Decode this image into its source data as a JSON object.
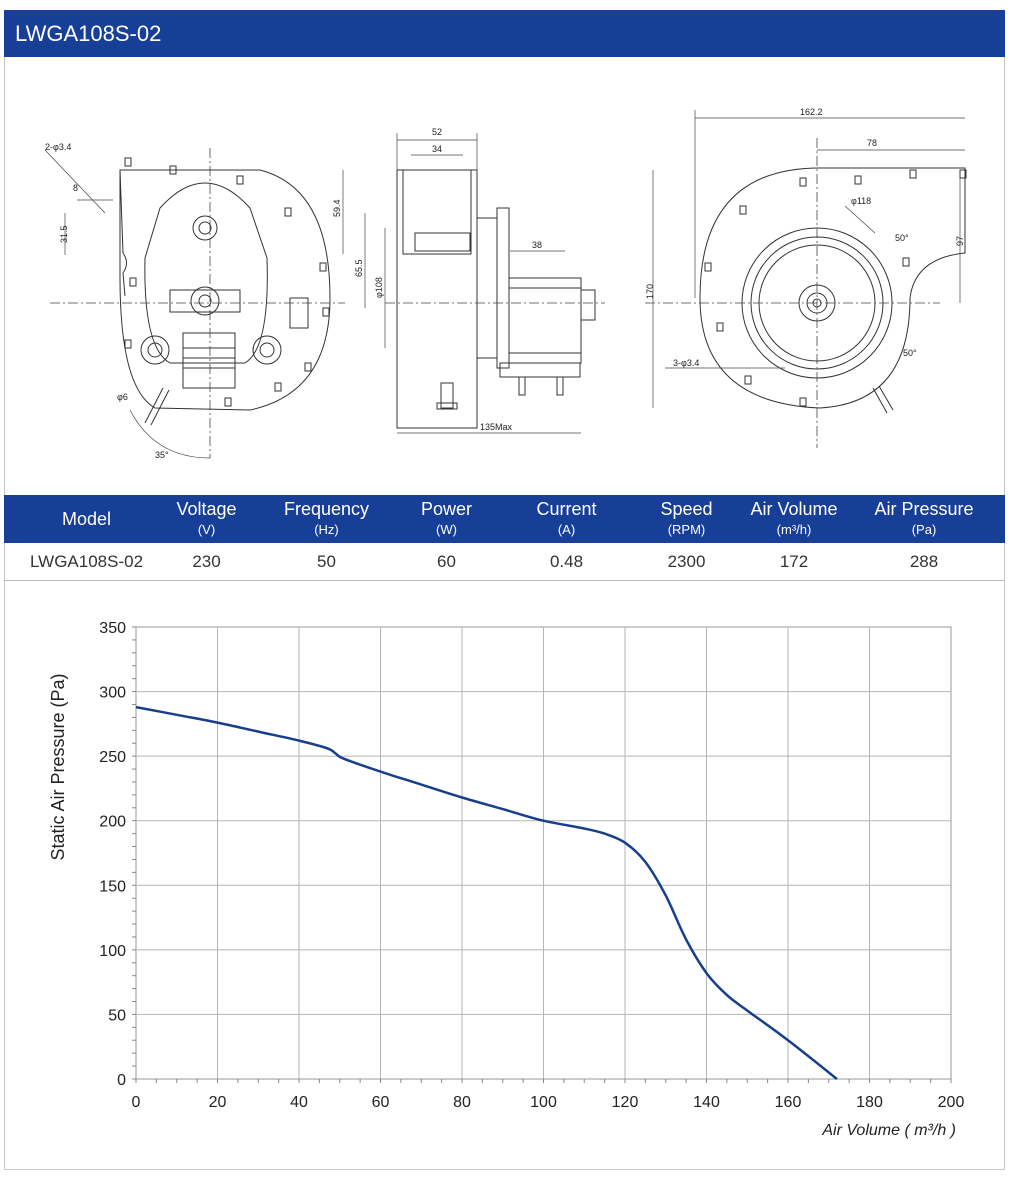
{
  "title": "LWGA108S-02",
  "drawings": {
    "front": {
      "hole_spec": "2-φ3.4",
      "dim_8": "8",
      "dim_31_5": "31.5",
      "dia_6": "φ6",
      "angle_35": "35°"
    },
    "side": {
      "dim_52": "52",
      "dim_34": "34",
      "dim_59_4": "59.4",
      "dim_65_5": "65.5",
      "dia_108": "φ108",
      "dim_38": "38",
      "dim_135": "135Max"
    },
    "back": {
      "dim_162_2": "162.2",
      "dim_78": "78",
      "dia_118": "φ118",
      "angle_50a": "50°",
      "dim_97": "97",
      "dim_170": "170",
      "hole_spec": "3-φ3.4",
      "angle_50b": "50°"
    }
  },
  "specs": {
    "headers": [
      {
        "label": "Model",
        "unit": ""
      },
      {
        "label": "Voltage",
        "unit": "(V)"
      },
      {
        "label": "Frequency",
        "unit": "(Hz)"
      },
      {
        "label": "Power",
        "unit": "(W)"
      },
      {
        "label": "Current",
        "unit": "(A)"
      },
      {
        "label": "Speed",
        "unit": "(RPM)"
      },
      {
        "label": "Air Volume",
        "unit": "(m³/h)"
      },
      {
        "label": "Air Pressure",
        "unit": "(Pa)"
      }
    ],
    "row": [
      "LWGA108S-02",
      "230",
      "50",
      "60",
      "0.48",
      "2300",
      "172",
      "288"
    ]
  },
  "colors": {
    "brand_blue": "#173f98",
    "curve": "#173f8a"
  },
  "chart_data": {
    "type": "line",
    "title": "",
    "xlabel": "Air Volume ( m³/h )",
    "ylabel": "Static Air Pressure  (Pa)",
    "xlim": [
      0,
      200
    ],
    "ylim": [
      0,
      350
    ],
    "xticks": [
      0,
      20,
      40,
      60,
      80,
      100,
      120,
      140,
      160,
      180,
      200
    ],
    "yticks": [
      0,
      50,
      100,
      150,
      200,
      250,
      300,
      350
    ],
    "grid": true,
    "series": [
      {
        "x": [
          0,
          10,
          20,
          30,
          40,
          47,
          49,
          51,
          60,
          70,
          80,
          90,
          100,
          110,
          115,
          120,
          125,
          130,
          135,
          140,
          145,
          150,
          160,
          172
        ],
        "y": [
          288,
          282,
          276,
          269,
          262,
          256,
          252,
          248,
          238,
          228,
          218,
          209,
          200,
          194,
          190,
          183,
          168,
          142,
          108,
          82,
          65,
          53,
          30,
          0
        ]
      }
    ]
  }
}
